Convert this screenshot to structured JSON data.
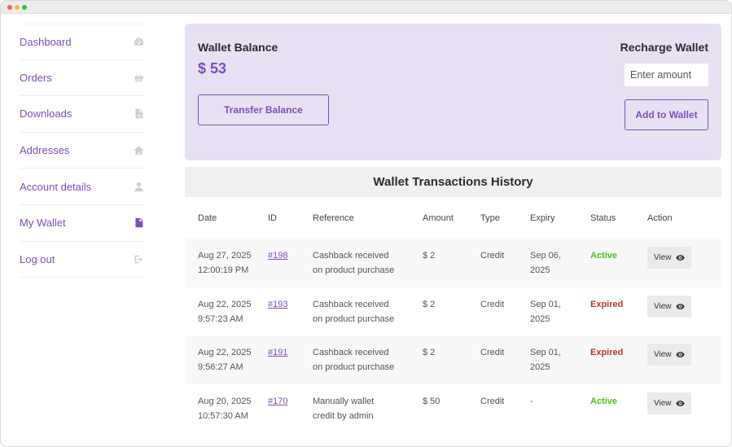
{
  "sidebar": {
    "items": [
      {
        "label": "Dashboard",
        "icon": "gauge-icon"
      },
      {
        "label": "Orders",
        "icon": "basket-icon"
      },
      {
        "label": "Downloads",
        "icon": "file-download-icon"
      },
      {
        "label": "Addresses",
        "icon": "home-icon"
      },
      {
        "label": "Account details",
        "icon": "user-icon"
      },
      {
        "label": "My Wallet",
        "icon": "document-icon",
        "active": true
      },
      {
        "label": "Log out",
        "icon": "sign-out-icon"
      }
    ]
  },
  "wallet": {
    "balance_title": "Wallet Balance",
    "balance_amount": "$ 53",
    "transfer_label": "Transfer Balance",
    "recharge_title": "Recharge Wallet",
    "amount_placeholder": "Enter amount",
    "add_label": "Add to Wallet"
  },
  "history": {
    "title": "Wallet Transactions History",
    "columns": [
      "Date",
      "ID",
      "Reference",
      "Amount",
      "Type",
      "Expiry",
      "Status",
      "Action"
    ],
    "rows": [
      {
        "date": "Aug 27, 2025",
        "time": "12:00:19 PM",
        "id": "#198",
        "ref1": "Cashback received",
        "ref2": "on product purchase",
        "amount": "$ 2",
        "type": "Credit",
        "exp1": "Sep 06,",
        "exp2": "2025",
        "status": "Active",
        "action": "View"
      },
      {
        "date": "Aug 22, 2025",
        "time": "9:57:23 AM",
        "id": "#193",
        "ref1": "Cashback received",
        "ref2": "on product purchase",
        "amount": "$ 2",
        "type": "Credit",
        "exp1": "Sep 01,",
        "exp2": "2025",
        "status": "Expired",
        "action": "View"
      },
      {
        "date": "Aug 22, 2025",
        "time": "9:56:27 AM",
        "id": "#191",
        "ref1": "Cashback received",
        "ref2": "on product purchase",
        "amount": "$ 2",
        "type": "Credit",
        "exp1": "Sep 01,",
        "exp2": "2025",
        "status": "Expired",
        "action": "View"
      },
      {
        "date": "Aug 20, 2025",
        "time": "10:57:30 AM",
        "id": "#170",
        "ref1": "Manually wallet",
        "ref2": "credit by admin",
        "amount": "$ 50",
        "type": "Credit",
        "exp1": "-",
        "exp2": "",
        "status": "Active",
        "action": "View"
      }
    ]
  },
  "colors": {
    "accent": "#7c4fbd",
    "card_bg": "#e8e0f3",
    "active": "#4cc21d",
    "expired": "#b23a3a"
  }
}
